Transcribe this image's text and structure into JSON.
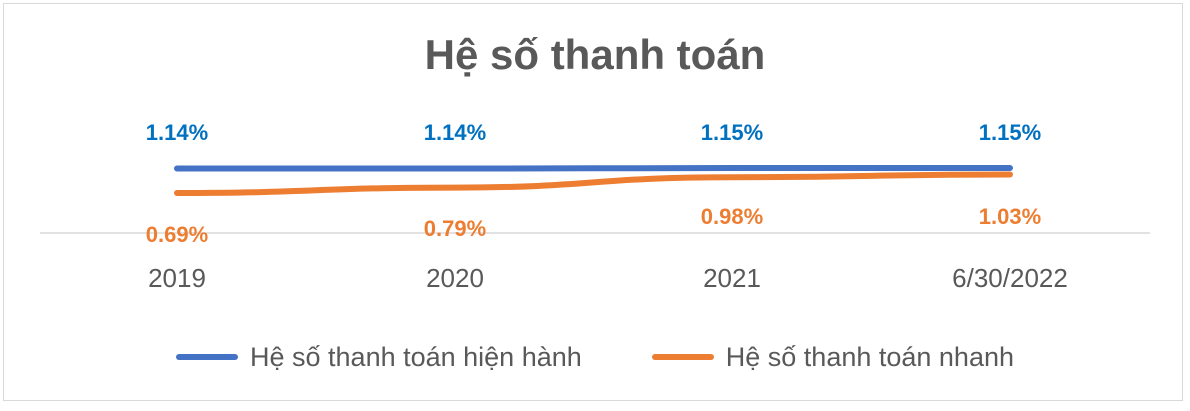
{
  "chart_data": {
    "type": "line",
    "title": "Hệ số thanh toán",
    "categories": [
      "2019",
      "2020",
      "2021",
      "6/30/2022"
    ],
    "series": [
      {
        "name": "Hệ số thanh toán hiện hành",
        "values": [
          1.14,
          1.14,
          1.15,
          1.15
        ],
        "labels": [
          "1.14%",
          "1.14%",
          "1.15%",
          "1.15%"
        ],
        "color": "#4472c4",
        "label_color": "#0070c0",
        "label_position": "above"
      },
      {
        "name": "Hệ số thanh toán nhanh",
        "values": [
          0.69,
          0.79,
          0.98,
          1.03
        ],
        "labels": [
          "0.69%",
          "0.79%",
          "0.98%",
          "1.03%"
        ],
        "color": "#ed7d31",
        "label_color": "#ed7d31",
        "label_position": "below"
      }
    ],
    "grid": false,
    "legend": "bottom"
  }
}
